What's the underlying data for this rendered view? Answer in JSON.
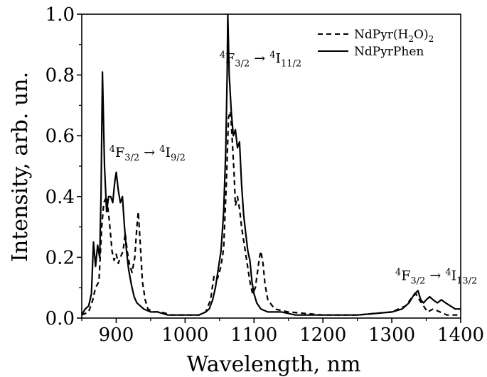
{
  "chart_data": {
    "type": "line",
    "xlabel": "Wavelength, nm",
    "ylabel": "Intensity, arb. un.",
    "xlim": [
      850,
      1400
    ],
    "ylim": [
      0.0,
      1.0
    ],
    "x_ticks": [
      900,
      1000,
      1100,
      1200,
      1300,
      1400
    ],
    "x_tick_labels": [
      "900",
      "1000",
      "1100",
      "1200",
      "1300",
      "1400"
    ],
    "y_ticks": [
      0.0,
      0.2,
      0.4,
      0.6,
      0.8,
      1.0
    ],
    "y_tick_labels": [
      "0.0",
      "0.2",
      "0.4",
      "0.6",
      "0.8",
      "1.0"
    ],
    "grid": false,
    "legend_position": "top-right",
    "series": [
      {
        "name": "NdPyr(H2O)2",
        "name_parts": {
          "pre": "NdPyr(H",
          "sub": "2",
          "mid": "O)",
          "sub2": "2"
        },
        "style": "dashed",
        "color": "#000000",
        "points": [
          [
            850,
            0.01
          ],
          [
            860,
            0.02
          ],
          [
            866,
            0.06
          ],
          [
            870,
            0.1
          ],
          [
            875,
            0.12
          ],
          [
            879,
            0.3
          ],
          [
            882,
            0.38
          ],
          [
            886,
            0.4
          ],
          [
            890,
            0.32
          ],
          [
            894,
            0.22
          ],
          [
            897,
            0.19
          ],
          [
            900,
            0.21
          ],
          [
            903,
            0.18
          ],
          [
            906,
            0.2
          ],
          [
            910,
            0.22
          ],
          [
            913,
            0.28
          ],
          [
            916,
            0.22
          ],
          [
            919,
            0.18
          ],
          [
            923,
            0.15
          ],
          [
            927,
            0.2
          ],
          [
            930,
            0.3
          ],
          [
            932,
            0.35
          ],
          [
            935,
            0.24
          ],
          [
            938,
            0.12
          ],
          [
            942,
            0.06
          ],
          [
            946,
            0.03
          ],
          [
            955,
            0.02
          ],
          [
            965,
            0.02
          ],
          [
            980,
            0.01
          ],
          [
            1000,
            0.01
          ],
          [
            1020,
            0.01
          ],
          [
            1030,
            0.02
          ],
          [
            1037,
            0.06
          ],
          [
            1042,
            0.14
          ],
          [
            1047,
            0.13
          ],
          [
            1052,
            0.17
          ],
          [
            1056,
            0.23
          ],
          [
            1060,
            0.45
          ],
          [
            1063,
            0.66
          ],
          [
            1066,
            0.68
          ],
          [
            1068,
            0.6
          ],
          [
            1071,
            0.48
          ],
          [
            1073,
            0.37
          ],
          [
            1076,
            0.4
          ],
          [
            1079,
            0.36
          ],
          [
            1082,
            0.3
          ],
          [
            1086,
            0.24
          ],
          [
            1090,
            0.18
          ],
          [
            1094,
            0.12
          ],
          [
            1098,
            0.08
          ],
          [
            1102,
            0.1
          ],
          [
            1105,
            0.15
          ],
          [
            1108,
            0.2
          ],
          [
            1110,
            0.22
          ],
          [
            1113,
            0.18
          ],
          [
            1116,
            0.11
          ],
          [
            1120,
            0.06
          ],
          [
            1130,
            0.03
          ],
          [
            1150,
            0.02
          ],
          [
            1200,
            0.01
          ],
          [
            1250,
            0.01
          ],
          [
            1300,
            0.02
          ],
          [
            1320,
            0.04
          ],
          [
            1330,
            0.07
          ],
          [
            1335,
            0.08
          ],
          [
            1340,
            0.06
          ],
          [
            1346,
            0.04
          ],
          [
            1352,
            0.02
          ],
          [
            1360,
            0.03
          ],
          [
            1370,
            0.02
          ],
          [
            1380,
            0.01
          ],
          [
            1390,
            0.01
          ],
          [
            1400,
            0.01
          ]
        ]
      },
      {
        "name": "NdPyrPhen",
        "style": "solid",
        "color": "#000000",
        "points": [
          [
            850,
            0.01
          ],
          [
            855,
            0.03
          ],
          [
            860,
            0.04
          ],
          [
            864,
            0.08
          ],
          [
            867,
            0.25
          ],
          [
            870,
            0.17
          ],
          [
            873,
            0.24
          ],
          [
            876,
            0.2
          ],
          [
            878,
            0.4
          ],
          [
            880,
            0.81
          ],
          [
            883,
            0.5
          ],
          [
            886,
            0.35
          ],
          [
            889,
            0.4
          ],
          [
            892,
            0.4
          ],
          [
            895,
            0.38
          ],
          [
            898,
            0.45
          ],
          [
            900,
            0.48
          ],
          [
            903,
            0.42
          ],
          [
            906,
            0.38
          ],
          [
            909,
            0.4
          ],
          [
            912,
            0.3
          ],
          [
            915,
            0.22
          ],
          [
            918,
            0.16
          ],
          [
            922,
            0.11
          ],
          [
            926,
            0.07
          ],
          [
            930,
            0.05
          ],
          [
            935,
            0.04
          ],
          [
            940,
            0.03
          ],
          [
            950,
            0.02
          ],
          [
            960,
            0.02
          ],
          [
            975,
            0.01
          ],
          [
            1000,
            0.01
          ],
          [
            1020,
            0.01
          ],
          [
            1030,
            0.02
          ],
          [
            1035,
            0.03
          ],
          [
            1040,
            0.06
          ],
          [
            1044,
            0.1
          ],
          [
            1048,
            0.16
          ],
          [
            1052,
            0.22
          ],
          [
            1056,
            0.35
          ],
          [
            1059,
            0.55
          ],
          [
            1061,
            0.8
          ],
          [
            1062,
            1.0
          ],
          [
            1064,
            0.8
          ],
          [
            1067,
            0.68
          ],
          [
            1070,
            0.6
          ],
          [
            1073,
            0.62
          ],
          [
            1076,
            0.56
          ],
          [
            1079,
            0.58
          ],
          [
            1082,
            0.44
          ],
          [
            1085,
            0.34
          ],
          [
            1088,
            0.28
          ],
          [
            1091,
            0.22
          ],
          [
            1094,
            0.19
          ],
          [
            1097,
            0.12
          ],
          [
            1100,
            0.08
          ],
          [
            1104,
            0.05
          ],
          [
            1110,
            0.03
          ],
          [
            1120,
            0.02
          ],
          [
            1140,
            0.02
          ],
          [
            1160,
            0.01
          ],
          [
            1200,
            0.01
          ],
          [
            1250,
            0.01
          ],
          [
            1300,
            0.02
          ],
          [
            1315,
            0.03
          ],
          [
            1325,
            0.05
          ],
          [
            1333,
            0.08
          ],
          [
            1338,
            0.09
          ],
          [
            1342,
            0.06
          ],
          [
            1346,
            0.05
          ],
          [
            1350,
            0.06
          ],
          [
            1355,
            0.07
          ],
          [
            1360,
            0.06
          ],
          [
            1366,
            0.05
          ],
          [
            1372,
            0.06
          ],
          [
            1378,
            0.05
          ],
          [
            1385,
            0.04
          ],
          [
            1392,
            0.03
          ],
          [
            1400,
            0.03
          ]
        ]
      }
    ],
    "annotations": [
      {
        "parts": [
          "4",
          "F",
          "3/2",
          " → ",
          "4",
          "I",
          "9/2"
        ],
        "x": 890,
        "y": 0.53
      },
      {
        "parts": [
          "4",
          "F",
          "3/2",
          " → ",
          "4",
          "I",
          "11/2"
        ],
        "x": 1050,
        "y": 0.84
      },
      {
        "parts": [
          "4",
          "F",
          "3/2",
          " → ",
          "4",
          "I",
          "13/2"
        ],
        "x": 1305,
        "y": 0.125
      }
    ]
  }
}
